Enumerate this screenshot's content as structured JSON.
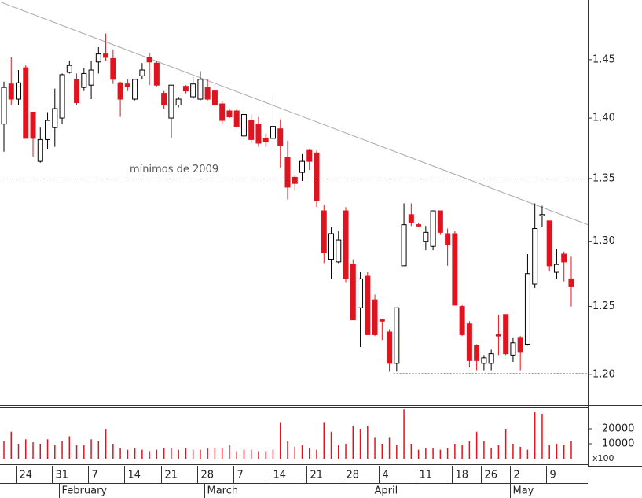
{
  "chart_data": [
    {
      "type": "candlestick",
      "categories": [
        null,
        null,
        "24",
        null,
        null,
        null,
        null,
        "31",
        null,
        null,
        null,
        null,
        "7",
        null,
        null,
        null,
        null,
        "14",
        null,
        null,
        null,
        null,
        "21",
        null,
        null,
        null,
        null,
        "28",
        null,
        null,
        null,
        null,
        "7",
        null,
        null,
        null,
        null,
        "14",
        null,
        null,
        null,
        null,
        "21",
        null,
        null,
        null,
        null,
        "28",
        null,
        null,
        null,
        null,
        "4",
        null,
        null,
        null,
        null,
        "11",
        null,
        null,
        null,
        null,
        "18",
        null,
        null,
        null,
        "26",
        null,
        null,
        null,
        "2",
        null,
        null,
        null,
        null,
        "9",
        null,
        null,
        null
      ],
      "month_labels": [
        null,
        null,
        null,
        null,
        null,
        null,
        null,
        null,
        "February",
        null,
        null,
        null,
        null,
        null,
        null,
        null,
        null,
        null,
        null,
        null,
        null,
        null,
        null,
        null,
        null,
        null,
        null,
        null,
        "March",
        null,
        null,
        null,
        null,
        null,
        null,
        null,
        null,
        null,
        null,
        null,
        null,
        null,
        null,
        null,
        null,
        null,
        null,
        null,
        null,
        null,
        null,
        "April",
        null,
        null,
        null,
        null,
        null,
        null,
        null,
        null,
        null,
        null,
        null,
        null,
        null,
        null,
        null,
        null,
        null,
        null,
        "May",
        null,
        null,
        null,
        null,
        null,
        null,
        null,
        null
      ],
      "open": [
        1.395,
        1.429,
        1.416,
        1.443,
        1.405,
        1.364,
        1.382,
        1.392,
        1.4,
        1.439,
        1.433,
        1.426,
        1.428,
        1.448,
        1.455,
        1.451,
        1.43,
        1.429,
        1.416,
        1.436,
        1.452,
        1.447,
        1.421,
        1.4,
        1.411,
        1.427,
        1.418,
        1.416,
        1.426,
        1.423,
        1.412,
        1.406,
        1.406,
        1.385,
        1.398,
        1.395,
        1.383,
        1.383,
        1.391,
        1.367,
        1.351,
        1.355,
        1.373,
        1.371,
        1.324,
        1.286,
        1.284,
        1.324,
        1.282,
        1.249,
        1.273,
        1.255,
        1.24,
        1.231,
        1.208,
        1.281,
        1.321,
        1.313,
        1.3,
        1.296,
        1.324,
        1.306,
        1.306,
        1.25,
        1.237,
        1.221,
        1.208,
        1.208,
        1.229,
        1.244,
        1.214,
        1.227,
        1.222,
        1.267,
        1.32,
        1.316,
        1.276,
        1.29,
        1.271
      ],
      "high": [
        1.431,
        1.452,
        1.441,
        1.445,
        1.405,
        1.392,
        1.405,
        1.425,
        1.438,
        1.449,
        1.438,
        1.443,
        1.449,
        1.461,
        1.473,
        1.459,
        1.431,
        1.433,
        1.433,
        1.447,
        1.456,
        1.449,
        1.423,
        1.428,
        1.418,
        1.428,
        1.435,
        1.44,
        1.433,
        1.429,
        1.414,
        1.408,
        1.408,
        1.406,
        1.403,
        1.401,
        1.387,
        1.42,
        1.399,
        1.381,
        1.353,
        1.37,
        1.374,
        1.373,
        1.329,
        1.311,
        1.308,
        1.327,
        1.286,
        1.276,
        1.276,
        1.259,
        1.241,
        1.233,
        1.249,
        1.33,
        1.33,
        1.314,
        1.312,
        1.324,
        1.324,
        1.31,
        1.308,
        1.251,
        1.239,
        1.222,
        1.214,
        1.218,
        1.244,
        1.244,
        1.227,
        1.228,
        1.29,
        1.33,
        1.328,
        1.316,
        1.294,
        1.292,
        1.288
      ],
      "low": [
        1.372,
        1.411,
        1.411,
        1.383,
        1.368,
        1.363,
        1.374,
        1.376,
        1.395,
        1.438,
        1.411,
        1.423,
        1.416,
        1.438,
        1.449,
        1.429,
        1.401,
        1.423,
        1.415,
        1.433,
        1.428,
        1.427,
        1.408,
        1.383,
        1.409,
        1.421,
        1.416,
        1.415,
        1.415,
        1.409,
        1.395,
        1.4,
        1.392,
        1.382,
        1.379,
        1.376,
        1.376,
        1.376,
        1.359,
        1.333,
        1.34,
        1.348,
        1.357,
        1.327,
        1.283,
        1.271,
        1.283,
        1.268,
        1.24,
        1.22,
        1.229,
        1.228,
        1.225,
        1.202,
        1.202,
        1.281,
        1.312,
        1.311,
        1.293,
        1.293,
        1.305,
        1.281,
        1.251,
        1.228,
        1.205,
        1.203,
        1.203,
        1.203,
        1.214,
        1.214,
        1.209,
        1.203,
        1.221,
        1.264,
        1.311,
        1.277,
        1.271,
        1.269,
        1.25
      ],
      "close": [
        1.426,
        1.416,
        1.43,
        1.383,
        1.383,
        1.382,
        1.398,
        1.408,
        1.437,
        1.445,
        1.413,
        1.438,
        1.441,
        1.455,
        1.452,
        1.433,
        1.416,
        1.427,
        1.433,
        1.441,
        1.448,
        1.428,
        1.411,
        1.428,
        1.416,
        1.423,
        1.429,
        1.433,
        1.416,
        1.411,
        1.398,
        1.401,
        1.393,
        1.403,
        1.382,
        1.379,
        1.38,
        1.393,
        1.377,
        1.343,
        1.346,
        1.364,
        1.364,
        1.332,
        1.291,
        1.306,
        1.301,
        1.271,
        1.24,
        1.271,
        1.229,
        1.229,
        1.239,
        1.208,
        1.249,
        1.313,
        1.315,
        1.312,
        1.307,
        1.324,
        1.307,
        1.297,
        1.251,
        1.229,
        1.21,
        1.21,
        1.212,
        1.215,
        1.228,
        1.215,
        1.223,
        1.216,
        1.275,
        1.31,
        1.321,
        1.281,
        1.282,
        1.284,
        1.265
      ],
      "up_color": "#ffffff",
      "down_color": "#e0141e",
      "log_scale": true,
      "ylim": [
        1.178,
        1.503
      ],
      "yticks": [
        {
          "value": 1.2,
          "label": "1.20"
        },
        {
          "value": 1.25,
          "label": "1.25"
        },
        {
          "value": 1.3,
          "label": "1.30"
        },
        {
          "value": 1.35,
          "label": "1.35"
        },
        {
          "value": 1.4,
          "label": "1.40"
        },
        {
          "value": 1.45,
          "label": "1.45"
        }
      ],
      "trendline": [
        1.5,
        1.318
      ],
      "levels": [
        {
          "value": 1.35,
          "label": "mínimos de 2009"
        },
        {
          "value": 1.201
        }
      ]
    },
    {
      "type": "volume",
      "values": [
        12000,
        18000,
        10000,
        13000,
        11000,
        10000,
        13000,
        9000,
        12000,
        15000,
        9000,
        9000,
        13000,
        12000,
        20000,
        10000,
        7000,
        6000,
        7000,
        6000,
        5000,
        6000,
        7000,
        7000,
        6000,
        7000,
        6000,
        6000,
        7000,
        7000,
        7000,
        9000,
        5000,
        6000,
        6000,
        5000,
        5000,
        6000,
        24000,
        12000,
        8000,
        9000,
        7000,
        6000,
        24000,
        18000,
        9000,
        10000,
        22000,
        20000,
        22000,
        14000,
        10000,
        14000,
        9000,
        33000,
        10000,
        6000,
        7000,
        7000,
        6000,
        7000,
        10000,
        9000,
        12000,
        18000,
        12000,
        7000,
        9000,
        20000,
        10000,
        8000,
        6000,
        31000,
        30000,
        9000,
        10000,
        9000,
        12000
      ],
      "color": "#e0141e",
      "ylim": [
        0,
        35000
      ],
      "yticks": [
        10000,
        20000
      ],
      "unit": "x100"
    }
  ]
}
